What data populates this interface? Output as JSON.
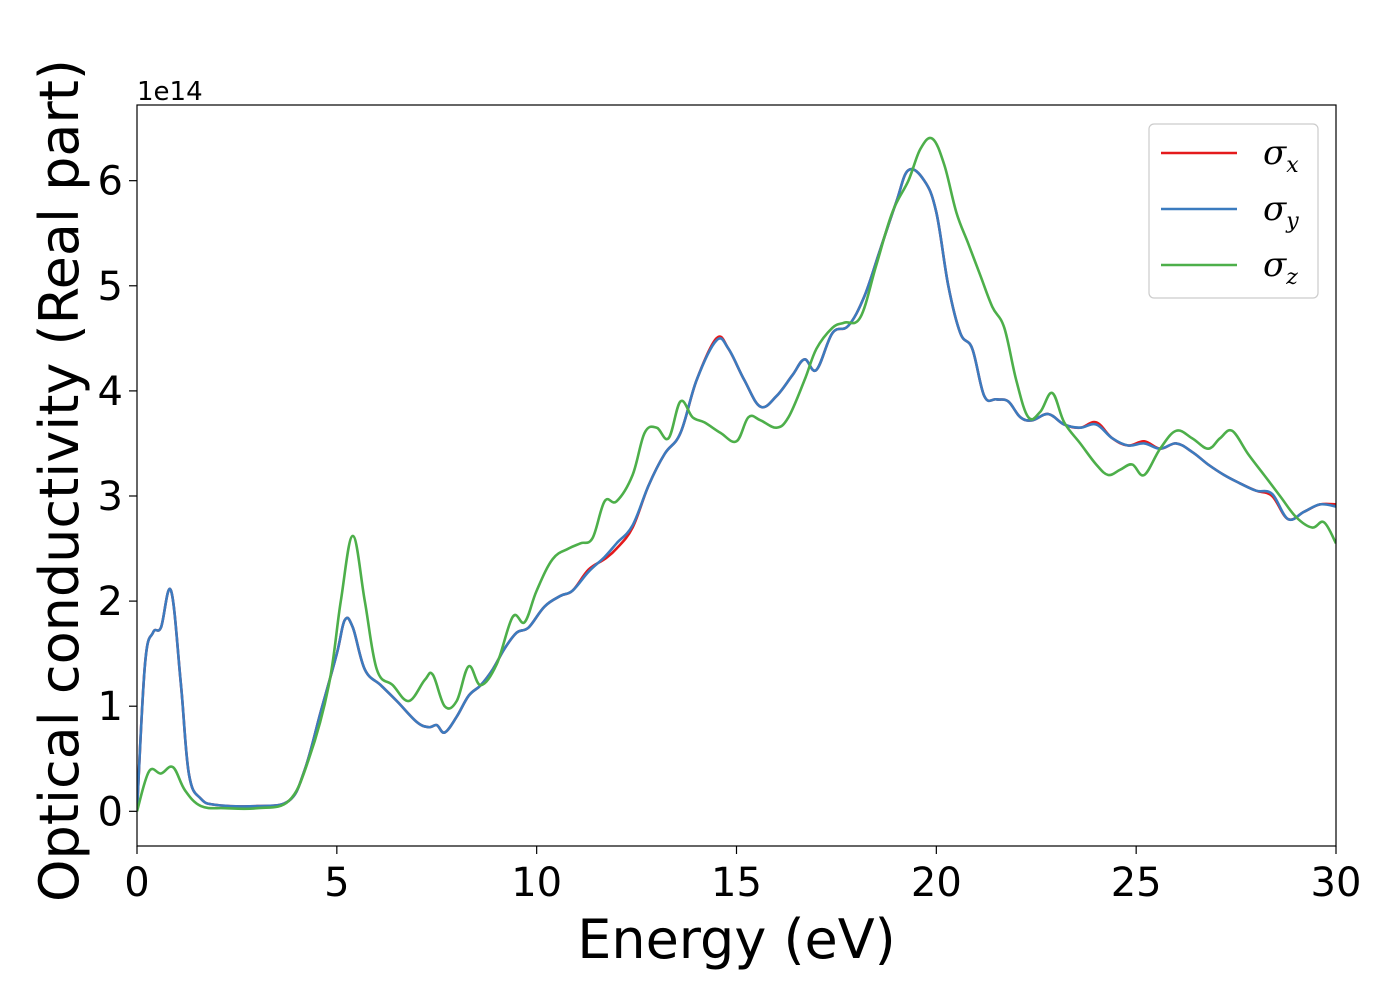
{
  "chart_data": {
    "type": "line",
    "xlabel": "Energy (eV)",
    "ylabel": "Optical conductivity (Real part)",
    "y_offset_label": "1e14",
    "xlim": [
      0,
      30
    ],
    "ylim": [
      -0.33,
      6.72
    ],
    "xticks": [
      0,
      5,
      10,
      15,
      20,
      25,
      30
    ],
    "yticks": [
      0,
      1,
      2,
      3,
      4,
      5,
      6
    ],
    "grid": false,
    "legend_position": "top-right",
    "series": [
      {
        "name": "σx",
        "legend_symbol": "σ",
        "legend_sub": "x",
        "color": "#e41a1c",
        "x": [
          0,
          0.2,
          0.4,
          0.6,
          0.85,
          1.1,
          1.3,
          1.6,
          2.0,
          3.0,
          3.8,
          4.2,
          4.6,
          5.0,
          5.2,
          5.4,
          5.7,
          6.1,
          6.5,
          7.0,
          7.3,
          7.5,
          7.7,
          8.0,
          8.3,
          8.6,
          8.9,
          9.2,
          9.5,
          9.8,
          10.2,
          10.6,
          10.9,
          11.3,
          11.7,
          12.0,
          12.4,
          12.8,
          13.2,
          13.6,
          14.0,
          14.5,
          14.8,
          15.2,
          15.6,
          16.0,
          16.4,
          16.7,
          17.0,
          17.4,
          17.8,
          18.2,
          18.6,
          19.0,
          19.3,
          19.7,
          20.0,
          20.3,
          20.6,
          20.9,
          21.2,
          21.5,
          21.8,
          22.1,
          22.4,
          22.8,
          23.2,
          23.6,
          24.0,
          24.4,
          24.8,
          25.2,
          25.6,
          26.0,
          26.4,
          26.8,
          27.2,
          27.6,
          28.0,
          28.4,
          28.8,
          29.2,
          29.6,
          30.0
        ],
        "y": [
          0.0,
          1.4,
          1.7,
          1.75,
          2.1,
          1.2,
          0.35,
          0.12,
          0.06,
          0.05,
          0.1,
          0.4,
          0.95,
          1.5,
          1.82,
          1.75,
          1.35,
          1.2,
          1.05,
          0.85,
          0.8,
          0.82,
          0.75,
          0.9,
          1.1,
          1.2,
          1.35,
          1.55,
          1.7,
          1.75,
          1.95,
          2.05,
          2.1,
          2.3,
          2.4,
          2.5,
          2.7,
          3.1,
          3.4,
          3.6,
          4.1,
          4.5,
          4.4,
          4.1,
          3.85,
          3.95,
          4.15,
          4.3,
          4.2,
          4.55,
          4.62,
          4.9,
          5.35,
          5.8,
          6.1,
          6.0,
          5.7,
          5.0,
          4.55,
          4.4,
          3.95,
          3.92,
          3.9,
          3.75,
          3.72,
          3.78,
          3.68,
          3.65,
          3.7,
          3.55,
          3.48,
          3.52,
          3.45,
          3.5,
          3.42,
          3.3,
          3.2,
          3.12,
          3.05,
          3.0,
          2.78,
          2.85,
          2.92,
          2.92
        ]
      },
      {
        "name": "σy",
        "legend_symbol": "σ",
        "legend_sub": "y",
        "color": "#3b7bbf",
        "x": [
          0,
          0.2,
          0.4,
          0.6,
          0.85,
          1.1,
          1.3,
          1.6,
          2.0,
          3.0,
          3.8,
          4.2,
          4.6,
          5.0,
          5.2,
          5.4,
          5.7,
          6.1,
          6.5,
          7.0,
          7.3,
          7.5,
          7.7,
          8.0,
          8.3,
          8.6,
          8.9,
          9.2,
          9.5,
          9.8,
          10.2,
          10.6,
          10.9,
          11.3,
          11.7,
          12.0,
          12.4,
          12.8,
          13.2,
          13.6,
          14.0,
          14.5,
          14.8,
          15.2,
          15.6,
          16.0,
          16.4,
          16.7,
          17.0,
          17.4,
          17.8,
          18.2,
          18.6,
          19.0,
          19.3,
          19.7,
          20.0,
          20.3,
          20.6,
          20.9,
          21.2,
          21.5,
          21.8,
          22.1,
          22.4,
          22.8,
          23.2,
          23.6,
          24.0,
          24.4,
          24.8,
          25.2,
          25.6,
          26.0,
          26.4,
          26.8,
          27.2,
          27.6,
          28.0,
          28.4,
          28.8,
          29.2,
          29.6,
          30.0
        ],
        "y": [
          0.0,
          1.4,
          1.7,
          1.75,
          2.1,
          1.2,
          0.35,
          0.12,
          0.06,
          0.05,
          0.1,
          0.4,
          0.95,
          1.5,
          1.82,
          1.75,
          1.35,
          1.2,
          1.05,
          0.85,
          0.8,
          0.82,
          0.75,
          0.9,
          1.1,
          1.2,
          1.35,
          1.55,
          1.7,
          1.75,
          1.95,
          2.05,
          2.1,
          2.28,
          2.42,
          2.55,
          2.72,
          3.1,
          3.4,
          3.6,
          4.1,
          4.48,
          4.4,
          4.1,
          3.85,
          3.95,
          4.15,
          4.3,
          4.2,
          4.55,
          4.62,
          4.9,
          5.35,
          5.8,
          6.1,
          6.0,
          5.7,
          5.0,
          4.55,
          4.4,
          3.95,
          3.92,
          3.9,
          3.75,
          3.72,
          3.78,
          3.68,
          3.65,
          3.68,
          3.55,
          3.48,
          3.5,
          3.45,
          3.5,
          3.42,
          3.3,
          3.2,
          3.12,
          3.05,
          3.02,
          2.78,
          2.85,
          2.92,
          2.9
        ]
      },
      {
        "name": "σz",
        "legend_symbol": "σ",
        "legend_sub": "z",
        "color": "#4daf4a",
        "x": [
          0,
          0.3,
          0.6,
          0.9,
          1.2,
          1.6,
          2.2,
          3.0,
          3.8,
          4.3,
          4.8,
          5.1,
          5.4,
          5.7,
          6.0,
          6.4,
          6.8,
          7.2,
          7.4,
          7.7,
          8.0,
          8.3,
          8.6,
          9.0,
          9.4,
          9.7,
          10.0,
          10.4,
          10.8,
          11.1,
          11.4,
          11.7,
          12.0,
          12.4,
          12.7,
          13.0,
          13.3,
          13.6,
          13.9,
          14.2,
          14.6,
          15.0,
          15.3,
          15.6,
          16.0,
          16.3,
          16.7,
          17.0,
          17.4,
          17.7,
          18.1,
          18.5,
          18.9,
          19.3,
          19.6,
          19.9,
          20.2,
          20.5,
          20.8,
          21.1,
          21.4,
          21.7,
          22.0,
          22.3,
          22.6,
          22.9,
          23.2,
          23.6,
          24.0,
          24.3,
          24.6,
          24.9,
          25.2,
          25.6,
          26.0,
          26.4,
          26.8,
          27.1,
          27.4,
          27.8,
          28.2,
          28.6,
          29.0,
          29.4,
          29.7,
          30.0
        ],
        "y": [
          0.0,
          0.38,
          0.36,
          0.42,
          0.2,
          0.05,
          0.03,
          0.03,
          0.1,
          0.5,
          1.2,
          2.0,
          2.62,
          2.0,
          1.35,
          1.2,
          1.05,
          1.25,
          1.3,
          1.0,
          1.05,
          1.38,
          1.2,
          1.4,
          1.85,
          1.8,
          2.1,
          2.4,
          2.5,
          2.55,
          2.6,
          2.95,
          2.95,
          3.2,
          3.6,
          3.65,
          3.55,
          3.9,
          3.75,
          3.7,
          3.6,
          3.52,
          3.75,
          3.72,
          3.65,
          3.75,
          4.1,
          4.4,
          4.6,
          4.65,
          4.7,
          5.2,
          5.7,
          6.0,
          6.3,
          6.4,
          6.15,
          5.7,
          5.4,
          5.1,
          4.8,
          4.6,
          4.1,
          3.75,
          3.8,
          3.98,
          3.7,
          3.5,
          3.3,
          3.2,
          3.25,
          3.3,
          3.2,
          3.45,
          3.62,
          3.55,
          3.45,
          3.55,
          3.62,
          3.4,
          3.2,
          3.0,
          2.8,
          2.7,
          2.75,
          2.55
        ]
      }
    ]
  }
}
